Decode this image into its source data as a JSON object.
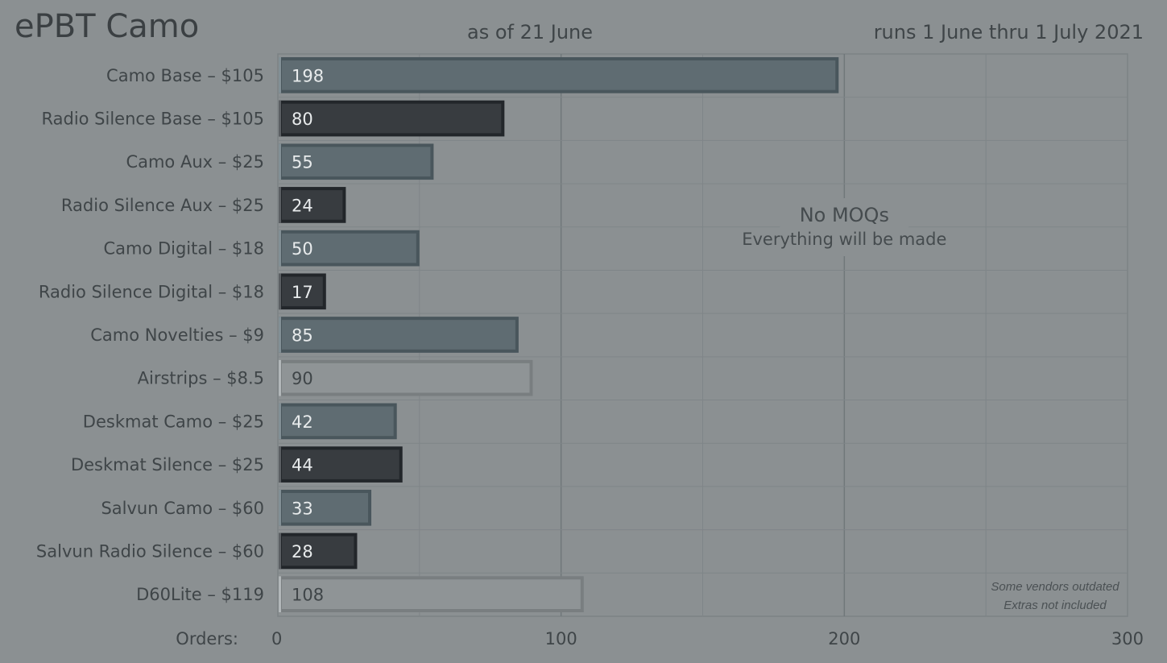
{
  "header": {
    "title": "ePBT Camo",
    "subtitle": "as of 21 June",
    "run_dates": "runs 1 June thru 1 July 2021"
  },
  "colors": {
    "background": "#8b9092",
    "camo": "#5f6c72",
    "radio_silence": "#383c40",
    "light": "#8f9496",
    "grid": "#7a8083"
  },
  "chart_data": {
    "type": "bar",
    "orientation": "horizontal",
    "categories": [
      "Camo Base – $105",
      "Radio Silence Base – $105",
      "Camo Aux – $25",
      "Radio Silence Aux – $25",
      "Camo Digital – $18",
      "Radio Silence Digital – $18",
      "Camo Novelties – $9",
      "Airstrips – $8.5",
      "Deskmat Camo – $25",
      "Deskmat Silence – $25",
      "Salvun Camo – $60",
      "Salvun Radio Silence – $60",
      "D60Lite – $119"
    ],
    "values": [
      198,
      80,
      55,
      24,
      50,
      17,
      85,
      90,
      42,
      44,
      33,
      28,
      108
    ],
    "bar_styles": [
      "camo",
      "radio_silence",
      "camo",
      "radio_silence",
      "camo",
      "radio_silence",
      "camo",
      "light",
      "camo",
      "radio_silence",
      "camo",
      "radio_silence",
      "light"
    ],
    "xlabel": "Orders:",
    "xlim": [
      0,
      300
    ],
    "xticks": [
      0,
      100,
      200,
      300
    ],
    "grid": true,
    "annotation": {
      "title": "No MOQs",
      "text": "Everything will be made",
      "x": 200
    },
    "footnote": [
      "Some vendors outdated",
      "Extras not included"
    ]
  }
}
